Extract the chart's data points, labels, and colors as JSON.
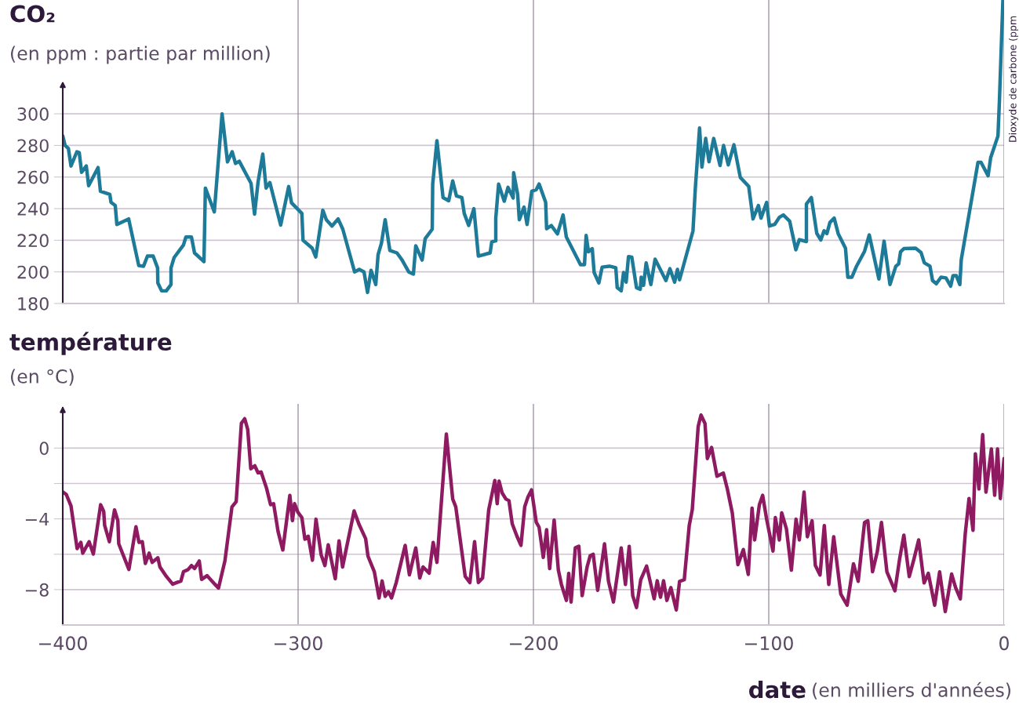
{
  "chart_data": [
    {
      "type": "line",
      "title": "CO₂",
      "subtitle": "(en ppm : partie par million)",
      "xlim": [
        -400,
        0
      ],
      "xticks": [
        {
          "value": -400,
          "label": null
        },
        {
          "value": -300,
          "label": null
        },
        {
          "value": -200,
          "label": null
        },
        {
          "value": -100,
          "label": null
        },
        {
          "value": 0,
          "label": null
        }
      ],
      "ylim": [
        180,
        372
      ],
      "yticks": [
        180,
        200,
        220,
        240,
        260,
        280,
        300
      ],
      "grid": true,
      "tick_labels": "y",
      "annotations": [
        "Dioxyde de carbone (ppm"
      ],
      "series": [
        {
          "color": "#1d7a98",
          "x": [
            -400,
            -399,
            -397.6,
            -396.5,
            -394,
            -393,
            -392,
            -390,
            -389,
            -385,
            -384,
            -380,
            -379.5,
            -377.7,
            -377,
            -372,
            -367.7,
            -365.7,
            -364,
            -361.6,
            -359.7,
            -359.6,
            -358,
            -356,
            -354,
            -354,
            -352.7,
            -348.7,
            -347.7,
            -345.3,
            -344,
            -340,
            -339.4,
            -335.6,
            -332.3,
            -330,
            -328,
            -326.6,
            -325,
            -320,
            -318.5,
            -317,
            -315,
            -313.6,
            -312,
            -307.4,
            -304,
            -302.8,
            -298.4,
            -297.9,
            -294,
            -292.5,
            -289.5,
            -288,
            -285.6,
            -283,
            -281,
            -276,
            -274,
            -272,
            -270.5,
            -269,
            -267,
            -266,
            -264.6,
            -263,
            -261,
            -258,
            -255.8,
            -253,
            -251,
            -250,
            -247.3,
            -246,
            -243,
            -242.8,
            -241,
            -238.4,
            -236,
            -234.3,
            -232.7,
            -230.4,
            -229.4,
            -227.5,
            -225.3,
            -223.4,
            -218.4,
            -217.7,
            -216,
            -216,
            -214.8,
            -212.4,
            -210.8,
            -208.6,
            -208.4,
            -206.7,
            -206,
            -204,
            -202.7,
            -200.7,
            -198.8,
            -197.6,
            -194.8,
            -194.4,
            -192.4,
            -189.8,
            -187.4,
            -186,
            -180,
            -178.3,
            -177.6,
            -176.6,
            -175,
            -174.2,
            -172.2,
            -170.8,
            -167.7,
            -165,
            -164.4,
            -162.7,
            -161.7,
            -160.6,
            -159.6,
            -158.2,
            -156.2,
            -154.6,
            -154.2,
            -153.2,
            -152.1,
            -150.1,
            -148.3,
            -143.7,
            -142,
            -140,
            -138.8,
            -137.9,
            -132.2,
            -131.2,
            -129.4,
            -128.4,
            -126.8,
            -125.4,
            -123.4,
            -120.7,
            -119.2,
            -117.2,
            -114.8,
            -112.1,
            -108.5,
            -106.7,
            -104.4,
            -103.3,
            -100.9,
            -99.7,
            -97.5,
            -95.5,
            -93.8,
            -91.1,
            -88.5,
            -87,
            -84,
            -84,
            -81.9,
            -79.6,
            -77.9,
            -76.5,
            -75.3,
            -74,
            -72.2,
            -70.5,
            -67.4,
            -66.4,
            -64.7,
            -62.7,
            -59.3,
            -57.3,
            -53.2,
            -51,
            -48.5,
            -46,
            -44.8,
            -44,
            -42.6,
            -37.6,
            -35.3,
            -33.9,
            -31.5,
            -30.4,
            -28.8,
            -26.8,
            -24.7,
            -22.7,
            -21.7,
            -20.3,
            -18.8,
            -18.2,
            -11.1,
            -9.8,
            -6.8,
            -5.7,
            -2.6,
            -2,
            -0.5
          ],
          "values": [
            286,
            280,
            278,
            267,
            276,
            275.5,
            263,
            267,
            254.5,
            266,
            251,
            249,
            244,
            242,
            230,
            233.5,
            204,
            203.5,
            210,
            210,
            202.5,
            193,
            188,
            188,
            192,
            202.5,
            209,
            217,
            222,
            222,
            212,
            206.5,
            253,
            238,
            300,
            269.6,
            276,
            268.6,
            270,
            256,
            236.5,
            257,
            274.5,
            253,
            256.5,
            229.6,
            254,
            243.7,
            237,
            220,
            215,
            209.4,
            239,
            233,
            229,
            233.5,
            227,
            200,
            201.6,
            200,
            187,
            201,
            192,
            211,
            218,
            233,
            213.5,
            212,
            207.5,
            200,
            198.6,
            216.5,
            207.5,
            221,
            227,
            255.5,
            283,
            247,
            245,
            257.5,
            248,
            247,
            237,
            229.4,
            240,
            210,
            212,
            219,
            219.6,
            234,
            255.5,
            244.7,
            253.5,
            246.7,
            262.7,
            249,
            233,
            241,
            230,
            251,
            252,
            255.6,
            244,
            227.3,
            229.3,
            224,
            236,
            222,
            204.6,
            204.6,
            223,
            212.7,
            214.7,
            199.6,
            193,
            203,
            203.6,
            202.6,
            190,
            188,
            199.6,
            193.5,
            209.7,
            209.3,
            190,
            189,
            196.6,
            191.5,
            205.7,
            192,
            208,
            194.5,
            202,
            193.5,
            201.6,
            195,
            225.9,
            253,
            291,
            266.3,
            284.4,
            269.7,
            284.4,
            267.3,
            280,
            267.7,
            280.4,
            259.8,
            254,
            233.5,
            242,
            234,
            244,
            229,
            230,
            234.5,
            236,
            232,
            214,
            220.4,
            219.2,
            243,
            247,
            224.4,
            220.2,
            226,
            224.2,
            231.3,
            234,
            224.2,
            215,
            196.6,
            196.6,
            203.6,
            213,
            223.4,
            195.5,
            219.4,
            192,
            203.6,
            205,
            212.7,
            214.7,
            215,
            212.3,
            205.7,
            203.6,
            194.5,
            192.5,
            196.6,
            196.2,
            191,
            197.6,
            197.6,
            192,
            207.7,
            269.3,
            269.3,
            260.8,
            272.3,
            286,
            307.7,
            372
          ]
        }
      ]
    },
    {
      "type": "line",
      "title": "température",
      "subtitle": "(en °C)",
      "xlabel": "date (en milliers d'années)",
      "xlim": [
        -400,
        0
      ],
      "xticks": [
        {
          "value": -400,
          "label": "−400"
        },
        {
          "value": -300,
          "label": "−300"
        },
        {
          "value": -200,
          "label": "−200"
        },
        {
          "value": -100,
          "label": "−100"
        },
        0
      ],
      "ylim": [
        -10,
        2.5
      ],
      "yticks": [
        {
          "value": -8,
          "label": "−8"
        },
        {
          "value": -6,
          "label": null
        },
        {
          "value": -4,
          "label": "−4"
        },
        {
          "value": -2,
          "label": null
        },
        0
      ],
      "grid": true,
      "series": [
        {
          "color": "#8e1a62",
          "x": [
            -400,
            -398.5,
            -396.5,
            -393.9,
            -392.3,
            -391.5,
            -388.8,
            -387,
            -383.9,
            -382.6,
            -382.2,
            -380.2,
            -378,
            -376.6,
            -376.2,
            -371.9,
            -368.9,
            -367.6,
            -366.2,
            -364.9,
            -363.3,
            -362,
            -359.6,
            -358.7,
            -356,
            -353.3,
            -351.6,
            -349.8,
            -348.7,
            -346.7,
            -345.3,
            -344,
            -342,
            -341,
            -338.7,
            -335.4,
            -333.8,
            -331.1,
            -328.1,
            -326.3,
            -324.1,
            -322.7,
            -321.4,
            -320.1,
            -318.4,
            -317,
            -315.7,
            -313.4,
            -311.7,
            -310.4,
            -308.5,
            -306.5,
            -303.5,
            -302.4,
            -301.5,
            -300.1,
            -298.4,
            -297.1,
            -295.7,
            -293.9,
            -292.4,
            -290.2,
            -288.6,
            -287.2,
            -284.2,
            -282.6,
            -281.1,
            -279.5,
            -276.2,
            -274.2,
            -271.3,
            -270.3,
            -267.6,
            -265.6,
            -264.3,
            -263,
            -261.6,
            -260.3,
            -258.3,
            -254.5,
            -252.7,
            -251.3,
            -250,
            -248.3,
            -246.9,
            -244.3,
            -242.6,
            -241,
            -237,
            -234.3,
            -233,
            -229,
            -227,
            -225,
            -223.4,
            -221.6,
            -219,
            -216.4,
            -215.4,
            -214.6,
            -213.3,
            -211.7,
            -210.4,
            -209,
            -207,
            -205.3,
            -203.7,
            -202.4,
            -200.8,
            -198.8,
            -197.6,
            -195.8,
            -194.4,
            -193.1,
            -191.2,
            -189.4,
            -188.1,
            -186,
            -185,
            -184,
            -182.2,
            -180.7,
            -179.3,
            -177.2,
            -175.9,
            -174.6,
            -172.7,
            -170.8,
            -169.8,
            -168.1,
            -166,
            -162.7,
            -160.9,
            -159.3,
            -157.8,
            -156.2,
            -154.4,
            -151.9,
            -148.7,
            -147.4,
            -146,
            -144.7,
            -143.3,
            -141.6,
            -139.3,
            -137.9,
            -135.9,
            -133.8,
            -132.5,
            -131.1,
            -130,
            -128.8,
            -127.1,
            -126.1,
            -124.3,
            -122,
            -119.3,
            -117.6,
            -115.5,
            -113.1,
            -110.8,
            -108.7,
            -107.1,
            -106,
            -104,
            -102.6,
            -100.9,
            -98.2,
            -97.2,
            -95.5,
            -94.5,
            -92.5,
            -90.4,
            -88.4,
            -87,
            -85,
            -83.6,
            -81.6,
            -80.2,
            -78.2,
            -76.4,
            -74.5,
            -72.4,
            -69.4,
            -66.7,
            -64,
            -62,
            -59.3,
            -57.9,
            -55.9,
            -53.9,
            -52.1,
            -49.8,
            -46.4,
            -44.4,
            -42.6,
            -40.3,
            -38.3,
            -36.3,
            -34,
            -32.2,
            -29.5,
            -27.4,
            -25,
            -22.3,
            -20.6,
            -18.6,
            -16.5,
            -14.9,
            -13.2,
            -12.2,
            -10.7,
            -9.1,
            -7.7,
            -5.4,
            -4,
            -2.8,
            -1.6,
            0
          ],
          "values": [
            -2.48,
            -2.62,
            -3.27,
            -5.68,
            -5.33,
            -5.94,
            -5.29,
            -5.99,
            -3.2,
            -3.58,
            -4.37,
            -5.29,
            -3.49,
            -4.1,
            -5.41,
            -6.86,
            -4.45,
            -5.33,
            -5.29,
            -6.52,
            -5.94,
            -6.46,
            -6.2,
            -6.72,
            -7.25,
            -7.69,
            -7.6,
            -7.51,
            -6.99,
            -6.86,
            -6.64,
            -6.81,
            -6.38,
            -7.42,
            -7.21,
            -7.69,
            -7.91,
            -6.38,
            -3.32,
            -3.02,
            1.4,
            1.66,
            1.05,
            -1.17,
            -1.0,
            -1.4,
            -1.35,
            -2.27,
            -3.2,
            -3.14,
            -4.72,
            -5.76,
            -2.67,
            -4.1,
            -3.14,
            -3.62,
            -3.93,
            -5.15,
            -4.98,
            -6.34,
            -4.02,
            -6.03,
            -6.64,
            -5.47,
            -7.39,
            -5.24,
            -6.72,
            -5.68,
            -3.55,
            -4.28,
            -5.12,
            -6.11,
            -6.99,
            -8.47,
            -7.51,
            -8.38,
            -8.12,
            -8.47,
            -7.6,
            -5.5,
            -7.16,
            -6.38,
            -5.64,
            -7.34,
            -6.72,
            -7.07,
            -5.33,
            -6.46,
            0.79,
            -2.88,
            -3.32,
            -7.25,
            -7.6,
            -5.29,
            -7.6,
            -7.34,
            -3.49,
            -1.83,
            -3.14,
            -1.87,
            -2.53,
            -2.88,
            -2.97,
            -4.28,
            -4.98,
            -5.5,
            -3.32,
            -2.79,
            -2.36,
            -4.19,
            -4.47,
            -6.18,
            -4.61,
            -6.81,
            -4.07,
            -6.9,
            -7.71,
            -8.61,
            -7.08,
            -8.7,
            -5.64,
            -5.55,
            -8.34,
            -6.72,
            -6.09,
            -6.0,
            -8.04,
            -6.36,
            -5.41,
            -7.53,
            -8.7,
            -5.64,
            -7.71,
            -5.55,
            -8.34,
            -9.01,
            -7.44,
            -6.67,
            -8.52,
            -7.5,
            -8.43,
            -7.5,
            -8.61,
            -7.89,
            -9.15,
            -7.53,
            -7.44,
            -4.38,
            -3.48,
            -0.86,
            1.21,
            1.87,
            1.39,
            -0.59,
            0.04,
            -1.59,
            -1.41,
            -2.31,
            -3.66,
            -6.59,
            -5.73,
            -7.14,
            -3.39,
            -5.19,
            -3.21,
            -2.67,
            -4.02,
            -5.82,
            -3.93,
            -5.19,
            -3.66,
            -4.56,
            -6.9,
            -4.02,
            -5.19,
            -2.49,
            -5.01,
            -4.11,
            -6.63,
            -7.17,
            -4.38,
            -7.71,
            -5.01,
            -8.25,
            -8.88,
            -6.54,
            -7.53,
            -4.2,
            -4.11,
            -6.99,
            -5.87,
            -4.2,
            -6.99,
            -8.07,
            -6.27,
            -4.92,
            -7.26,
            -6.27,
            -5.19,
            -7.62,
            -7.08,
            -8.88,
            -7.0,
            -9.24,
            -7.12,
            -7.89,
            -8.52,
            -4.83,
            -2.85,
            -4.65,
            -0.32,
            -2.31,
            0.76,
            -2.49,
            -0.05,
            -2.67,
            -0.05,
            -2.85,
            -0.59
          ]
        }
      ]
    }
  ]
}
